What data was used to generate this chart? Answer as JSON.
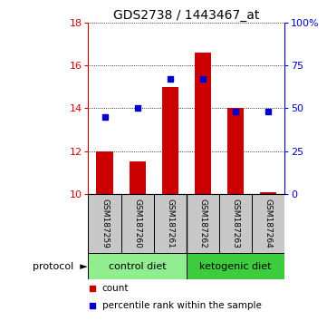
{
  "title": "GDS2738 / 1443467_at",
  "samples": [
    "GSM187259",
    "GSM187260",
    "GSM187261",
    "GSM187262",
    "GSM187263",
    "GSM187264"
  ],
  "red_values": [
    12.0,
    11.5,
    15.0,
    16.6,
    14.0,
    10.1
  ],
  "blue_values": [
    45,
    50,
    67,
    67,
    48,
    48
  ],
  "ylim_left": [
    10,
    18
  ],
  "ylim_right": [
    0,
    100
  ],
  "yticks_left": [
    10,
    12,
    14,
    16,
    18
  ],
  "yticks_right": [
    0,
    25,
    50,
    75,
    100
  ],
  "ytick_labels_right": [
    "0",
    "25",
    "50",
    "75",
    "100%"
  ],
  "ctrl_color": "#90EE90",
  "keto_color": "#3DCC3D",
  "red_color": "#CC0000",
  "blue_color": "#0000CC",
  "bar_width": 0.5,
  "legend_red": "count",
  "legend_blue": "percentile rank within the sample",
  "sample_box_color": "#C8C8C8",
  "title_fontsize": 10,
  "tick_fontsize": 8,
  "base_value": 10
}
